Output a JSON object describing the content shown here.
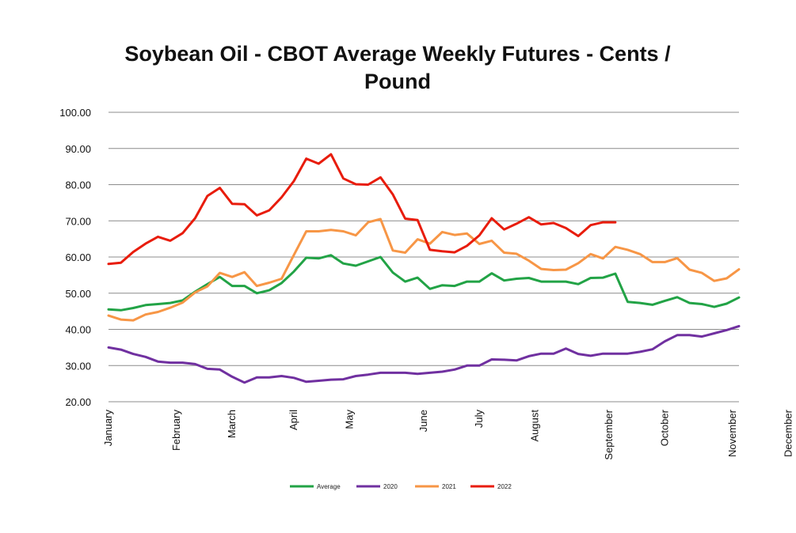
{
  "chart_data": {
    "type": "line",
    "title_line1": "Soybean Oil - CBOT Average Weekly Futures - Cents /",
    "title_line2": "Pound",
    "xlabel": "",
    "ylabel": "",
    "ylim": [
      20,
      100
    ],
    "yticks": [
      "100.00",
      "90.00",
      "80.00",
      "70.00",
      "60.00",
      "50.00",
      "40.00",
      "30.00",
      "20.00"
    ],
    "x_week_range": [
      1,
      52
    ],
    "month_labels": [
      {
        "label": "January",
        "week": 1
      },
      {
        "label": "February",
        "week": 6.5
      },
      {
        "label": "March",
        "week": 11
      },
      {
        "label": "April",
        "week": 16
      },
      {
        "label": "May",
        "week": 20.5
      },
      {
        "label": "June",
        "week": 26.5
      },
      {
        "label": "July",
        "week": 31
      },
      {
        "label": "August",
        "week": 35.5
      },
      {
        "label": "September",
        "week": 41.5
      },
      {
        "label": "October",
        "week": 46
      },
      {
        "label": "November",
        "week": 51.5
      },
      {
        "label": "December",
        "week": 56
      }
    ],
    "grid": true,
    "legend_position": "bottom",
    "series": [
      {
        "name": "Average",
        "color": "#22a346",
        "values": [
          45.5,
          45.3,
          45.9,
          46.7,
          47.0,
          47.3,
          48.0,
          50.4,
          52.5,
          54.5,
          52.0,
          52.0,
          50.0,
          50.8,
          52.8,
          56.0,
          59.8,
          59.6,
          60.5,
          58.2,
          57.6,
          58.8,
          60.0,
          55.7,
          53.2,
          54.3,
          51.2,
          52.2,
          52.0,
          53.2,
          53.2,
          55.5,
          53.5,
          54.0,
          54.2,
          53.2,
          53.2,
          53.2,
          52.5,
          54.2,
          54.3,
          55.4,
          47.6,
          47.3,
          46.8,
          47.9,
          48.9,
          47.3,
          47.0,
          46.2,
          47.1,
          48.8
        ]
      },
      {
        "name": "2020",
        "color": "#7030a0",
        "values": [
          35.0,
          34.4,
          33.2,
          32.4,
          31.1,
          30.8,
          30.8,
          30.4,
          29.1,
          28.9,
          26.9,
          25.3,
          26.7,
          26.7,
          27.1,
          26.6,
          25.5,
          25.8,
          26.1,
          26.2,
          27.1,
          27.5,
          28.0,
          28.0,
          28.0,
          27.7,
          28.0,
          28.3,
          28.9,
          30.0,
          30.0,
          31.7,
          31.6,
          31.4,
          32.6,
          33.3,
          33.3,
          34.7,
          33.2,
          32.7,
          33.3,
          33.3,
          33.3,
          33.8,
          34.5,
          36.7,
          38.4,
          38.4,
          38.0,
          38.9,
          39.8,
          40.9
        ]
      },
      {
        "name": "2021",
        "color": "#f79646",
        "values": [
          43.8,
          42.7,
          42.5,
          44.1,
          44.8,
          46.0,
          47.4,
          50.2,
          51.9,
          55.6,
          54.5,
          55.8,
          52.0,
          52.9,
          54.0,
          60.6,
          67.1,
          67.1,
          67.5,
          67.1,
          66.0,
          69.6,
          70.5,
          61.8,
          61.2,
          64.9,
          63.7,
          66.9,
          66.1,
          66.5,
          63.6,
          64.5,
          61.2,
          60.9,
          59.0,
          56.7,
          56.4,
          56.5,
          58.3,
          60.8,
          59.6,
          62.8,
          62.0,
          60.8,
          58.6,
          58.6,
          59.7,
          56.5,
          55.6,
          53.4,
          54.1,
          56.6
        ]
      },
      {
        "name": "2022",
        "color": "#e81c0c",
        "values": [
          58.1,
          58.4,
          61.4,
          63.7,
          65.6,
          64.5,
          66.6,
          70.7,
          76.9,
          79.1,
          74.7,
          74.6,
          71.5,
          72.9,
          76.5,
          81.0,
          87.2,
          85.8,
          88.4,
          81.7,
          80.1,
          80.0,
          82.0,
          77.3,
          70.6,
          70.2,
          62.0,
          61.6,
          61.3,
          63.1,
          66.0,
          70.7,
          67.6,
          69.2,
          71.0,
          69.0,
          69.4,
          68.0,
          65.8,
          68.8,
          69.6,
          69.6
        ]
      }
    ]
  }
}
